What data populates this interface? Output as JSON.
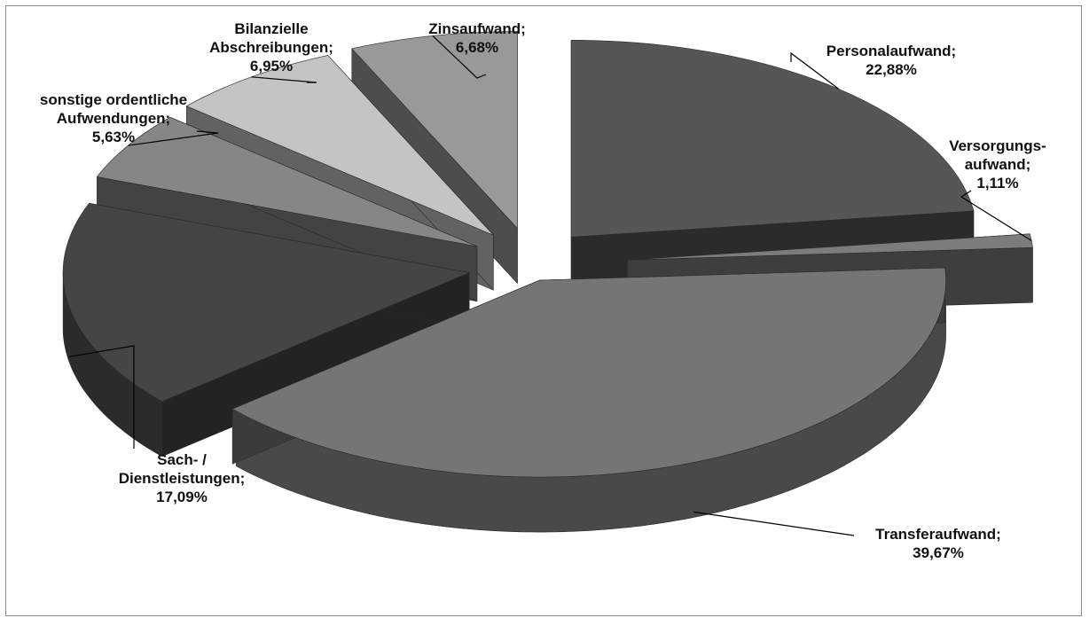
{
  "chart_data": {
    "type": "pie",
    "title": "",
    "slices": [
      {
        "label_lines": [
          "Personalaufwand;",
          "22,88%"
        ],
        "value": 22.88,
        "color": "#565656"
      },
      {
        "label_lines": [
          "Versorgungs-",
          "aufwand;",
          "1,11%"
        ],
        "value": 1.11,
        "color": "#7c7c7c"
      },
      {
        "label_lines": [
          "Transferaufwand;",
          "39,67%"
        ],
        "value": 39.67,
        "color": "#757575"
      },
      {
        "label_lines": [
          "Sach- /",
          "Dienstleistungen;",
          "17,09%"
        ],
        "value": 17.09,
        "color": "#454545"
      },
      {
        "label_lines": [
          "sonstige ordentliche",
          "Aufwendungen;",
          "5,63%"
        ],
        "value": 5.63,
        "color": "#868686"
      },
      {
        "label_lines": [
          "Bilanzielle",
          "Abschreibungen;",
          "6,95%"
        ],
        "value": 6.95,
        "color": "#c4c4c4"
      },
      {
        "label_lines": [
          "Zinsaufwand;",
          "6,68%"
        ],
        "value": 6.68,
        "color": "#999999"
      }
    ],
    "style": "3d-exploded",
    "legend": "none",
    "data_labels": "outside-with-leader-lines"
  }
}
